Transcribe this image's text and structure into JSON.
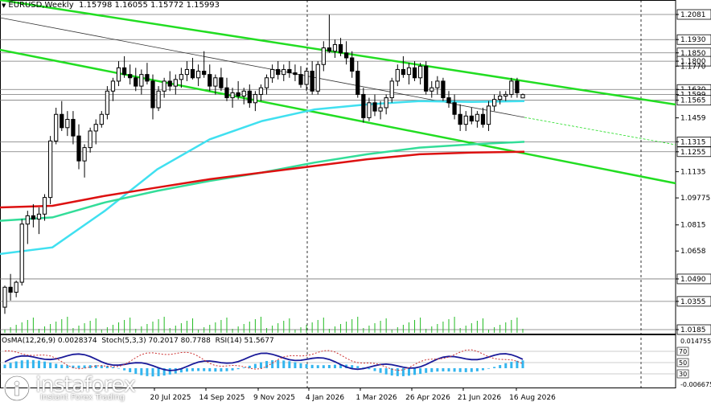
{
  "header": {
    "symbol": "EURUSD,Weekly",
    "ohlc": "1.15798 1.16055 1.15772 1.15993"
  },
  "indicators": {
    "osma": "OsMA(12,26,9) 0.0028374",
    "stoch": "Stoch(5,3,3) 70.2017 80.7788",
    "rsi": "RSI(14) 51.5677",
    "scale_top": "0.014755",
    "scale_bottom": "-0.006675",
    "levels": [
      "70",
      "50",
      "30"
    ]
  },
  "logo": {
    "brand": "instaforex",
    "tagline": "Instant Forex Trading"
  },
  "colors": {
    "candle": "#000000",
    "channel": "#22dd22",
    "ma_fast": "#40e0f0",
    "ma_mid": "#33dd99",
    "ma_slow": "#dd1111",
    "osma_bar": "#33b5ee",
    "stoch_main": "#1a1a99",
    "rsi_line": "#cc3333",
    "volume": "#22bb22"
  },
  "chart_data": {
    "type": "candlestick",
    "symbol": "EURUSD",
    "timeframe": "Weekly",
    "ylim": [
      1.01,
      1.215
    ],
    "price_levels": [
      "1.20810",
      "1.19300",
      "1.18500",
      "1.18000",
      "1.17700",
      "1.16300",
      "1.15990",
      "1.15650",
      "1.14590",
      "1.13150",
      "1.12550",
      "1.11350",
      "1.09775",
      "1.08150",
      "1.06580",
      "1.04900",
      "1.03550",
      "1.01850"
    ],
    "highlighted_levels": [
      "1.20810",
      "1.19300",
      "1.18500",
      "1.18000",
      "1.16300",
      "1.15990",
      "1.15650",
      "1.13150",
      "1.12550",
      "1.04900",
      "1.03550",
      "1.01850"
    ],
    "x_labels": [
      "20 Jul 2025",
      "14 Sep 2025",
      "9 Nov 2025",
      "4 Jan 2026",
      "1 Mar 2026",
      "26 Apr 2026",
      "21 Jun 2026",
      "16 Aug 2026"
    ],
    "candles": [
      [
        1.032,
        1.045,
        1.028,
        1.044
      ],
      [
        1.044,
        1.052,
        1.036,
        1.041
      ],
      [
        1.041,
        1.048,
        1.038,
        1.047
      ],
      [
        1.047,
        1.085,
        1.045,
        1.082
      ],
      [
        1.082,
        1.09,
        1.07,
        1.087
      ],
      [
        1.087,
        1.094,
        1.08,
        1.085
      ],
      [
        1.085,
        1.092,
        1.076,
        1.088
      ],
      [
        1.088,
        1.1,
        1.084,
        1.098
      ],
      [
        1.098,
        1.135,
        1.094,
        1.132
      ],
      [
        1.132,
        1.152,
        1.13,
        1.148
      ],
      [
        1.148,
        1.156,
        1.138,
        1.14
      ],
      [
        1.14,
        1.15,
        1.135,
        1.145
      ],
      [
        1.145,
        1.15,
        1.13,
        1.135
      ],
      [
        1.135,
        1.142,
        1.115,
        1.12
      ],
      [
        1.12,
        1.13,
        1.11,
        1.128
      ],
      [
        1.128,
        1.14,
        1.125,
        1.138
      ],
      [
        1.138,
        1.145,
        1.13,
        1.142
      ],
      [
        1.142,
        1.15,
        1.14,
        1.148
      ],
      [
        1.148,
        1.165,
        1.145,
        1.162
      ],
      [
        1.162,
        1.17,
        1.156,
        1.168
      ],
      [
        1.168,
        1.18,
        1.165,
        1.176
      ],
      [
        1.176,
        1.183,
        1.17,
        1.172
      ],
      [
        1.172,
        1.178,
        1.166,
        1.17
      ],
      [
        1.17,
        1.176,
        1.162,
        1.165
      ],
      [
        1.165,
        1.175,
        1.16,
        1.172
      ],
      [
        1.172,
        1.179,
        1.166,
        1.168
      ],
      [
        1.168,
        1.172,
        1.145,
        1.152
      ],
      [
        1.152,
        1.165,
        1.15,
        1.162
      ],
      [
        1.162,
        1.17,
        1.158,
        1.168
      ],
      [
        1.168,
        1.174,
        1.162,
        1.165
      ],
      [
        1.165,
        1.172,
        1.16,
        1.169
      ],
      [
        1.169,
        1.176,
        1.164,
        1.172
      ],
      [
        1.172,
        1.18,
        1.168,
        1.175
      ],
      [
        1.175,
        1.182,
        1.169,
        1.17
      ],
      [
        1.17,
        1.178,
        1.165,
        1.174
      ],
      [
        1.174,
        1.186,
        1.17,
        1.172
      ],
      [
        1.172,
        1.178,
        1.162,
        1.165
      ],
      [
        1.165,
        1.172,
        1.16,
        1.17
      ],
      [
        1.17,
        1.176,
        1.162,
        1.164
      ],
      [
        1.164,
        1.17,
        1.156,
        1.158
      ],
      [
        1.158,
        1.164,
        1.152,
        1.161
      ],
      [
        1.161,
        1.168,
        1.157,
        1.159
      ],
      [
        1.159,
        1.164,
        1.154,
        1.162
      ],
      [
        1.162,
        1.166,
        1.152,
        1.155
      ],
      [
        1.155,
        1.162,
        1.15,
        1.16
      ],
      [
        1.16,
        1.166,
        1.156,
        1.164
      ],
      [
        1.164,
        1.172,
        1.16,
        1.17
      ],
      [
        1.17,
        1.178,
        1.167,
        1.175
      ],
      [
        1.175,
        1.18,
        1.169,
        1.172
      ],
      [
        1.172,
        1.178,
        1.168,
        1.175
      ],
      [
        1.175,
        1.18,
        1.17,
        1.173
      ],
      [
        1.173,
        1.178,
        1.168,
        1.172
      ],
      [
        1.172,
        1.177,
        1.164,
        1.166
      ],
      [
        1.166,
        1.176,
        1.162,
        1.174
      ],
      [
        1.174,
        1.18,
        1.16,
        1.162
      ],
      [
        1.162,
        1.18,
        1.16,
        1.178
      ],
      [
        1.178,
        1.192,
        1.174,
        1.188
      ],
      [
        1.188,
        1.208,
        1.185,
        1.186
      ],
      [
        1.186,
        1.193,
        1.182,
        1.19
      ],
      [
        1.19,
        1.194,
        1.183,
        1.185
      ],
      [
        1.185,
        1.192,
        1.178,
        1.182
      ],
      [
        1.182,
        1.186,
        1.17,
        1.174
      ],
      [
        1.174,
        1.18,
        1.158,
        1.16
      ],
      [
        1.16,
        1.164,
        1.143,
        1.146
      ],
      [
        1.146,
        1.158,
        1.144,
        1.155
      ],
      [
        1.155,
        1.16,
        1.147,
        1.15
      ],
      [
        1.15,
        1.156,
        1.145,
        1.152
      ],
      [
        1.152,
        1.16,
        1.148,
        1.158
      ],
      [
        1.158,
        1.17,
        1.155,
        1.168
      ],
      [
        1.168,
        1.178,
        1.165,
        1.175
      ],
      [
        1.175,
        1.183,
        1.17,
        1.172
      ],
      [
        1.172,
        1.179,
        1.166,
        1.176
      ],
      [
        1.176,
        1.18,
        1.168,
        1.17
      ],
      [
        1.17,
        1.179,
        1.166,
        1.177
      ],
      [
        1.177,
        1.18,
        1.16,
        1.162
      ],
      [
        1.162,
        1.168,
        1.158,
        1.164
      ],
      [
        1.164,
        1.171,
        1.16,
        1.168
      ],
      [
        1.168,
        1.17,
        1.156,
        1.158
      ],
      [
        1.158,
        1.162,
        1.152,
        1.155
      ],
      [
        1.155,
        1.16,
        1.145,
        1.148
      ],
      [
        1.148,
        1.154,
        1.138,
        1.142
      ],
      [
        1.142,
        1.15,
        1.138,
        1.147
      ],
      [
        1.147,
        1.152,
        1.142,
        1.144
      ],
      [
        1.144,
        1.15,
        1.14,
        1.148
      ],
      [
        1.148,
        1.152,
        1.14,
        1.142
      ],
      [
        1.142,
        1.156,
        1.138,
        1.153
      ],
      [
        1.153,
        1.16,
        1.15,
        1.157
      ],
      [
        1.157,
        1.162,
        1.154,
        1.159
      ],
      [
        1.159,
        1.162,
        1.156,
        1.16
      ],
      [
        1.16,
        1.17,
        1.158,
        1.168
      ],
      [
        1.168,
        1.17,
        1.158,
        1.161
      ],
      [
        1.1579,
        1.1605,
        1.1577,
        1.1599
      ]
    ],
    "series": [
      {
        "type": "moving_average",
        "color": "#40e0f0",
        "values_sampled": [
          1.064,
          1.068,
          1.09,
          1.115,
          1.133,
          1.144,
          1.151,
          1.154,
          1.156,
          1.1555,
          1.156
        ]
      },
      {
        "type": "moving_average",
        "color": "#33dd99",
        "values_sampled": [
          1.084,
          1.086,
          1.095,
          1.102,
          1.108,
          1.113,
          1.119,
          1.124,
          1.128,
          1.13,
          1.1315
        ]
      },
      {
        "type": "moving_average",
        "color": "#dd1111",
        "values_sampled": [
          1.092,
          1.093,
          1.099,
          1.104,
          1.109,
          1.113,
          1.117,
          1.121,
          1.124,
          1.125,
          1.1255
        ]
      }
    ]
  }
}
